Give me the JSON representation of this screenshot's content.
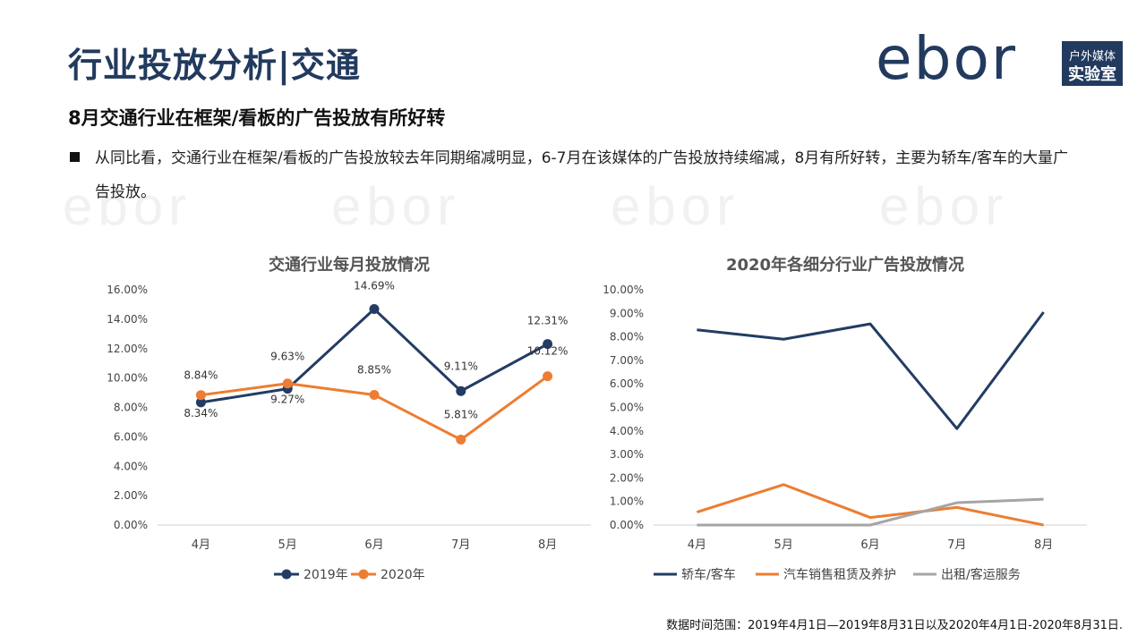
{
  "header": {
    "title": "行业投放分析|交通",
    "logo": {
      "wordmark": "ebor",
      "badge_line1": "户外媒体",
      "badge_line2": "实验室"
    }
  },
  "subtitle": "8月交通行业在框架/看板的广告投放有所好转",
  "bullet": "从同比看，交通行业在框架/看板的广告投放较去年同期缩减明显，6-7月在该媒体的广告投放持续缩减，8月有所好转，主要为轿车/客车的大量广告投放。",
  "footnote": "数据时间范围：2019年4月1日—2019年8月31日以及2020年4月1日-2020年8月31日.",
  "chart_data": [
    {
      "type": "line",
      "title": "交通行业每月投放情况",
      "categories": [
        "4月",
        "5月",
        "6月",
        "7月",
        "8月"
      ],
      "ylim": [
        0,
        16
      ],
      "yticks": [
        0,
        2,
        4,
        6,
        8,
        10,
        12,
        14,
        16
      ],
      "ytick_labels": [
        "0.00%",
        "2.00%",
        "4.00%",
        "6.00%",
        "8.00%",
        "10.00%",
        "12.00%",
        "14.00%",
        "16.00%"
      ],
      "grid": false,
      "legend": "bottom",
      "series": [
        {
          "name": "2019年",
          "color": "#233c64",
          "values": [
            8.34,
            9.27,
            14.69,
            9.11,
            12.31
          ],
          "labels": [
            "8.34%",
            "9.27%",
            "14.69%",
            "9.11%",
            "12.31%"
          ]
        },
        {
          "name": "2020年",
          "color": "#ed7d31",
          "values": [
            8.84,
            9.63,
            8.85,
            5.81,
            10.12
          ],
          "labels": [
            "8.84%",
            "9.63%",
            "8.85%",
            "5.81%",
            "10.12%"
          ]
        }
      ]
    },
    {
      "type": "line",
      "title": "2020年各细分行业广告投放情况",
      "categories": [
        "4月",
        "5月",
        "6月",
        "7月",
        "8月"
      ],
      "ylim": [
        0,
        10
      ],
      "yticks": [
        0,
        1,
        2,
        3,
        4,
        5,
        6,
        7,
        8,
        9,
        10
      ],
      "ytick_labels": [
        "0.00%",
        "1.00%",
        "2.00%",
        "3.00%",
        "4.00%",
        "5.00%",
        "6.00%",
        "7.00%",
        "8.00%",
        "9.00%",
        "10.00%"
      ],
      "grid": false,
      "legend": "bottom",
      "series": [
        {
          "name": "轿车/客车",
          "color": "#233c64",
          "values": [
            8.3,
            7.9,
            8.55,
            4.1,
            9.05
          ]
        },
        {
          "name": "汽车销售租赁及养护",
          "color": "#ed7d31",
          "values": [
            0.55,
            1.72,
            0.32,
            0.75,
            0.0
          ]
        },
        {
          "name": "出租/客运服务",
          "color": "#a5a5a5",
          "values": [
            0.0,
            0.0,
            0.0,
            0.95,
            1.1
          ]
        }
      ]
    }
  ]
}
